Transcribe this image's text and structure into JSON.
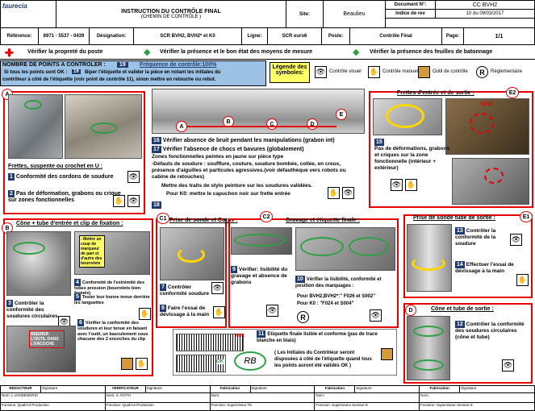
{
  "header": {
    "title": "INSTRUCTION DU CONTRÔLE FINAL",
    "subtitle": "(CHEMIN DE CONTRÔLE )",
    "site_label": "Site:",
    "site_value": "Beaulieu",
    "doc_label": "Document N°:",
    "doc_value": "CC BVH2",
    "rev_label": "Indice de rev",
    "rev_value": "10 du 09/03/2017",
    "ref_label": "Référence:",
    "ref_value": "6971 - 5537 - 0439",
    "designation_label": "Désignation:",
    "designation_value": "SCR BVH2, BVH2* et K0",
    "ligne_label": "Ligne:",
    "ligne_value": "SCR euro6",
    "poste_label": "Poste:",
    "poste_value": "Contrôle Final",
    "page_label": "Page:",
    "page_value": "1/1",
    "logo": "faurecia"
  },
  "checks": {
    "c1": "Vérifier la propreté du poste",
    "c2": "Vérifier la présence et le bon état des moyens de mesure",
    "c3": "Vérifier la présence des feuilles de batonnage"
  },
  "points": {
    "title": "NOMBRE DE POINTS A CONTROLER :",
    "count": "19",
    "freq": "Fréquence de contrôle:100%",
    "line_a": "Si tous les points sont OK :",
    "num": "19",
    "line_b": "Biper l'étiquette et valider la pièce en notant les initiales du",
    "line_c": "contrôleur à côté de l'étiquette (voir point de contrôle 11), sinon mettre en retouche ou rebut."
  },
  "legend": {
    "title": "Légende des symboles:",
    "visual": "Contrôle visuel",
    "manual": "Contrôle manuel",
    "tool": "Outil de contrôle",
    "reg": "Réglementaire"
  },
  "sections": {
    "a_title": "Frettes, suspente ou crochet en U :",
    "a_1": "Conformité des cordons de soudure",
    "a_2": "Pas de déformation, grabons ou crique sur zones fonctionnelles",
    "b_title": "Cône + tube d'entrée et clip de fixation :",
    "b_note": "- Mettre un coup de marqueur de part et d'autre des bourrelets",
    "b_3": "Contrôler la conformité des soudures circulaires",
    "b_4": "Conformité de l'extrémité des tubes pression (bourrelets bien formés)",
    "b_5": "Tester leur bonne tenue derrière les languettes",
    "b_6": "Vérifier la conformité des soudures et leur tenue en faisant avec l'outil, un basculement sous chacune des 2 encoches du clip",
    "b_insert": "INSERER L'OUTIL DANS L'ENCOCHE",
    "c1_title": "Prise de sonde et Corps :",
    "c1_7": "Contrôler conformité soudure",
    "c1_8": "Faire l'essai de dévissage à la main",
    "c2_title": "Gravage et étiquette finale :",
    "c2_9": "Vérifier: lisibilité du gravage et absence de grabons",
    "c2_10": "Vérifier la lisibilité, conformité et position des marquages :",
    "c2_10a": "Pour BVH2,BVH2*:\" F026 et S002\"",
    "c2_10b": "Pour K0 : \"F024 et S004\"",
    "c2_11": "Etiquette finale lisible et conforme (pas de trace blanche en biais)",
    "c2_11b": "( Les Initiales du Contrôleur seront disposées à côté de l'étiquette quand tous les points auront été validés OK )",
    "c2_nok": "NOK",
    "c2_ok": "OK",
    "c2_rb": "RB",
    "mid_16": "Vérifier absence de bruit pendant les manipulations (grabon int)",
    "mid_17": "Vérifier l'absence de chocs et bavures (globalement)",
    "mid_17a": "Zones fonctionnelles peintes en jaune sur pièce type",
    "mid_17b": "-Défauts de soudure : soufflure, couture, soudure bombée, collée, en creux, présence d'aiguilles et particules agressives.(voir défauthèque vers robots ou cabine de retouches)",
    "mid_17c": "Mettre des traits de stylo peinture sur les soudures validées.",
    "mid_17d": "Pour K0: mettre le capuchon noir sur frette entrée",
    "mid_18": "18",
    "e2_title": "Frettes d'entrée et de sortie :",
    "e2_15": "Pas de déformations, grabons et criques sur la zone fonctionnelle (intérieur + extérieur)",
    "e2_nok": "NOK",
    "e1_title": "Prise de sonde tube de sortie :",
    "e1_13": "Contrôler la conformité de la soudure",
    "e1_14": "Effectuer l'essai de dévissage à la main",
    "d_title": "Cône et tube de sortie :",
    "d_12": "Contrôler la conformité des soudures circulaires (cône et tube)"
  },
  "footer": {
    "h1": "REDACTEUR",
    "s1": "Signature",
    "n1": "Nom: L.VANDENDRIC",
    "f1": "Fonction: Qual/A3 Production",
    "h2": "VERIFICATEUR",
    "s2": "Signature",
    "n2": "Nom: S. ROTH",
    "f2": "Fonction: Qual/A3 Production",
    "h3": "Fabrication",
    "s3": "Signature",
    "n3": "Nom:",
    "f3": "Fonction: Superviseur TE",
    "h4": "Fabrication",
    "s4": "Signature",
    "n4": "Nom:",
    "f4": "Fonction: Superviseur Secteur E",
    "h5": "Fabrication",
    "s5": "Signature",
    "n5": "Nom:",
    "f5": "Fonction: Superviseur Secteur E"
  },
  "colors": {
    "accent_blue": "#1d3b6e",
    "red": "#e60000",
    "yellow": "#ffff66",
    "green": "#2ea043"
  }
}
